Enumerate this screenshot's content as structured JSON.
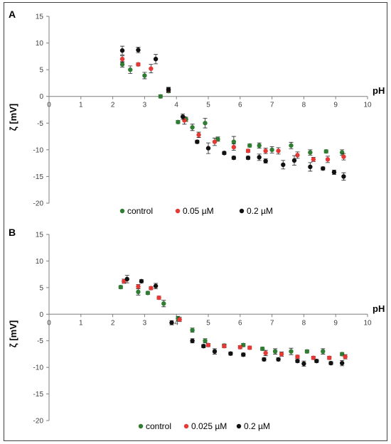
{
  "chart_data": [
    {
      "type": "scatter",
      "panel_label": "A",
      "xlabel": "pH",
      "ylabel": "ζ [mV]",
      "xlim": [
        0,
        10
      ],
      "ylim": [
        -20,
        15
      ],
      "xticks": [
        0,
        1,
        2,
        3,
        4,
        5,
        6,
        7,
        8,
        9,
        10
      ],
      "yticks": [
        15,
        10,
        5,
        0,
        -5,
        -10,
        -15,
        -20
      ],
      "grid": false,
      "legend_position": "bottom",
      "series": [
        {
          "name": "control",
          "color": "#2e7d32",
          "points": [
            [
              2.3,
              6.0,
              0.5
            ],
            [
              2.55,
              5.0,
              0.7
            ],
            [
              3.0,
              3.9,
              0.6
            ],
            [
              3.5,
              0.0,
              0.3
            ],
            [
              3.75,
              1.0,
              0.3
            ],
            [
              4.05,
              -4.8,
              0.3
            ],
            [
              4.3,
              -4.3,
              0.4
            ],
            [
              4.5,
              -5.8,
              0.6
            ],
            [
              4.9,
              -5.0,
              0.9
            ],
            [
              5.3,
              -8.0,
              0.4
            ],
            [
              5.8,
              -8.5,
              1.0
            ],
            [
              6.3,
              -9.2,
              0.3
            ],
            [
              6.6,
              -9.2,
              0.5
            ],
            [
              7.0,
              -10.0,
              0.6
            ],
            [
              7.6,
              -9.2,
              0.6
            ],
            [
              8.2,
              -10.5,
              0.5
            ],
            [
              8.7,
              -10.3,
              0.3
            ],
            [
              9.2,
              -10.5,
              0.5
            ]
          ]
        },
        {
          "name": "0.05 µM",
          "color": "#e53935",
          "points": [
            [
              2.3,
              7.0,
              0.6
            ],
            [
              2.8,
              6.0,
              0.3
            ],
            [
              3.2,
              5.2,
              0.8
            ],
            [
              3.75,
              1.2,
              0.4
            ],
            [
              4.25,
              -4.5,
              0.7
            ],
            [
              4.7,
              -7.2,
              0.5
            ],
            [
              5.2,
              -8.5,
              0.7
            ],
            [
              5.8,
              -9.5,
              0.6
            ],
            [
              6.25,
              -10.2,
              0.3
            ],
            [
              6.8,
              -10.2,
              0.5
            ],
            [
              7.2,
              -10.2,
              0.6
            ],
            [
              7.8,
              -11.0,
              0.6
            ],
            [
              8.3,
              -11.8,
              0.4
            ],
            [
              8.75,
              -11.8,
              0.6
            ],
            [
              9.25,
              -11.3,
              0.6
            ]
          ]
        },
        {
          "name": "0.2 µM",
          "color": "#111111",
          "points": [
            [
              2.3,
              8.6,
              0.8
            ],
            [
              2.8,
              8.7,
              0.5
            ],
            [
              3.35,
              7.0,
              0.9
            ],
            [
              3.75,
              1.3,
              0.4
            ],
            [
              4.2,
              -3.8,
              0.5
            ],
            [
              4.65,
              -8.5,
              0.3
            ],
            [
              5.0,
              -9.7,
              1.0
            ],
            [
              5.5,
              -10.6,
              0.3
            ],
            [
              5.8,
              -11.5,
              0.3
            ],
            [
              6.25,
              -11.5,
              0.3
            ],
            [
              6.6,
              -11.4,
              0.6
            ],
            [
              6.8,
              -12.1,
              0.4
            ],
            [
              7.35,
              -12.8,
              0.8
            ],
            [
              7.7,
              -12.0,
              0.9
            ],
            [
              8.2,
              -13.2,
              0.8
            ],
            [
              8.6,
              -13.5,
              0.3
            ],
            [
              8.95,
              -14.2,
              0.4
            ],
            [
              9.25,
              -15.0,
              0.7
            ]
          ]
        }
      ]
    },
    {
      "type": "scatter",
      "panel_label": "B",
      "xlabel": "pH",
      "ylabel": "ζ [mV]",
      "xlim": [
        0,
        10
      ],
      "ylim": [
        -20,
        15
      ],
      "xticks": [
        0,
        1,
        2,
        3,
        4,
        5,
        6,
        7,
        8,
        9,
        10
      ],
      "yticks": [
        15,
        10,
        5,
        0,
        -5,
        -10,
        -15,
        -20
      ],
      "grid": false,
      "legend_position": "bottom",
      "series": [
        {
          "name": "control",
          "color": "#2e7d32",
          "points": [
            [
              2.25,
              5.1,
              0.3
            ],
            [
              2.8,
              4.2,
              0.6
            ],
            [
              3.1,
              4.0,
              0.3
            ],
            [
              3.6,
              2.0,
              0.6
            ],
            [
              4.05,
              -0.8,
              0.4
            ],
            [
              4.5,
              -3.0,
              0.4
            ],
            [
              4.9,
              -5.0,
              0.4
            ],
            [
              5.5,
              -5.9,
              0.3
            ],
            [
              6.1,
              -5.8,
              0.3
            ],
            [
              6.7,
              -6.5,
              0.3
            ],
            [
              7.1,
              -7.0,
              0.5
            ],
            [
              7.6,
              -7.0,
              0.6
            ],
            [
              8.1,
              -7.0,
              0.3
            ],
            [
              8.6,
              -7.0,
              0.5
            ],
            [
              9.2,
              -7.5,
              0.3
            ]
          ]
        },
        {
          "name": "0.025 µM",
          "color": "#e53935",
          "points": [
            [
              2.35,
              6.2,
              0.4
            ],
            [
              2.8,
              5.2,
              0.4
            ],
            [
              3.2,
              4.9,
              0.3
            ],
            [
              3.45,
              3.1,
              0.3
            ],
            [
              4.1,
              -1.0,
              0.4
            ],
            [
              5.0,
              -5.8,
              0.3
            ],
            [
              5.5,
              -6.0,
              0.3
            ],
            [
              6.0,
              -6.2,
              0.3
            ],
            [
              6.3,
              -6.3,
              0.3
            ],
            [
              6.8,
              -7.3,
              0.5
            ],
            [
              7.3,
              -7.5,
              0.4
            ],
            [
              7.8,
              -8.0,
              0.3
            ],
            [
              8.3,
              -8.2,
              0.3
            ],
            [
              8.8,
              -8.2,
              0.3
            ],
            [
              9.3,
              -8.0,
              0.4
            ]
          ]
        },
        {
          "name": "0.2 µM",
          "color": "#111111",
          "points": [
            [
              2.45,
              6.6,
              0.7
            ],
            [
              2.9,
              6.2,
              0.3
            ],
            [
              3.35,
              5.3,
              0.5
            ],
            [
              3.85,
              -1.6,
              0.4
            ],
            [
              4.5,
              -5.0,
              0.4
            ],
            [
              4.85,
              -6.0,
              0.3
            ],
            [
              5.2,
              -7.0,
              0.5
            ],
            [
              5.7,
              -7.4,
              0.3
            ],
            [
              6.1,
              -7.6,
              0.3
            ],
            [
              6.75,
              -8.5,
              0.3
            ],
            [
              7.2,
              -8.5,
              0.3
            ],
            [
              7.8,
              -8.8,
              0.3
            ],
            [
              8.0,
              -9.3,
              0.5
            ],
            [
              8.4,
              -8.8,
              0.3
            ],
            [
              8.85,
              -9.2,
              0.3
            ],
            [
              9.2,
              -9.2,
              0.5
            ]
          ]
        }
      ]
    }
  ]
}
